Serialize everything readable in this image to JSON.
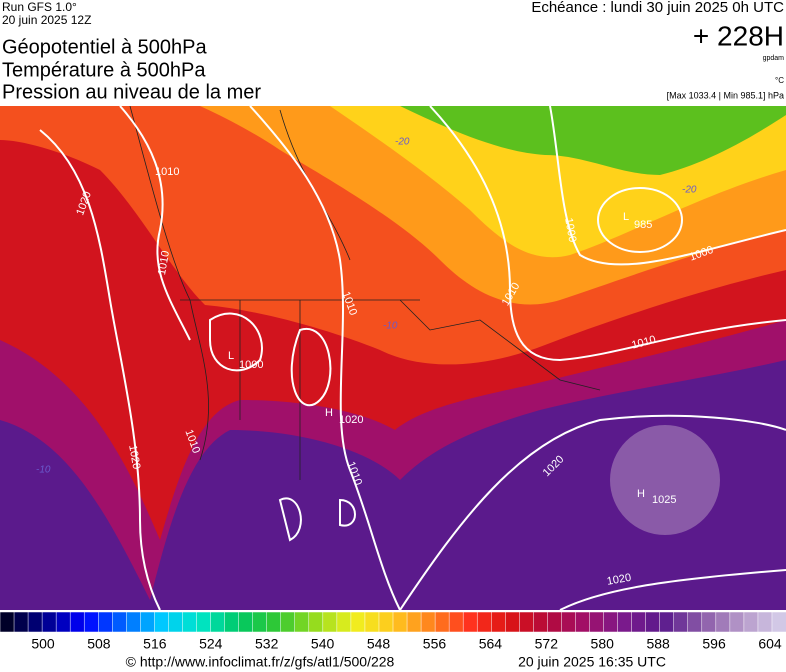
{
  "header": {
    "run": "Run GFS 1.0°",
    "date": "20 juin 2025 12Z",
    "lines": [
      "Géopotentiel à 500hPa",
      "Température à 500hPa",
      "Pression au niveau de la mer"
    ],
    "echeance": "Echéance : lundi 30 juin 2025 0h UTC",
    "lead": "+ 228H",
    "lead_unit": "gpdam",
    "temp_unit": "°C",
    "pressure_range": "[Max 1033.4 | Min 985.1] hPa"
  },
  "map": {
    "labels": [
      "1010",
      "1020",
      "1010",
      "1010",
      "1010",
      "1010",
      "1000",
      "1000",
      "L",
      "1000",
      "H",
      "1020",
      "L",
      "985",
      "1020",
      "1010",
      "1010",
      "1020",
      "H",
      "1025",
      "1020",
      "-20",
      "-20",
      "-10",
      "-10"
    ]
  },
  "colorbar": {
    "ticks": [
      500,
      508,
      516,
      524,
      532,
      540,
      548,
      556,
      564,
      572,
      580,
      588,
      596,
      604
    ]
  },
  "footer": {
    "url": "© http://www.infoclimat.fr/z/gfs/atl1/500/228",
    "generated": "20 juin 2025 16:35 UTC"
  }
}
